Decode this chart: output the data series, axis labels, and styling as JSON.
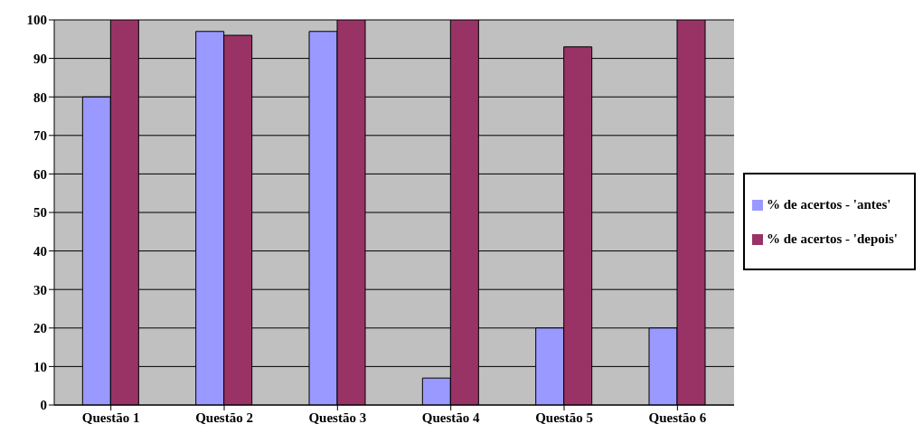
{
  "chart_data": {
    "type": "bar",
    "categories": [
      "Questão 1",
      "Questão 2",
      "Questão 3",
      "Questão 4",
      "Questão 5",
      "Questão 6"
    ],
    "series": [
      {
        "name": "% de acertos - 'antes'",
        "color": "#9999ff",
        "values": [
          80,
          97,
          97,
          7,
          20,
          20
        ]
      },
      {
        "name": "% de acertos - 'depois'",
        "color": "#993366",
        "values": [
          100,
          96,
          100,
          100,
          93,
          100
        ]
      }
    ],
    "ylim": [
      0,
      100
    ],
    "yticks": [
      0,
      10,
      20,
      30,
      40,
      50,
      60,
      70,
      80,
      90,
      100
    ],
    "grid": "y",
    "legend": "right"
  }
}
